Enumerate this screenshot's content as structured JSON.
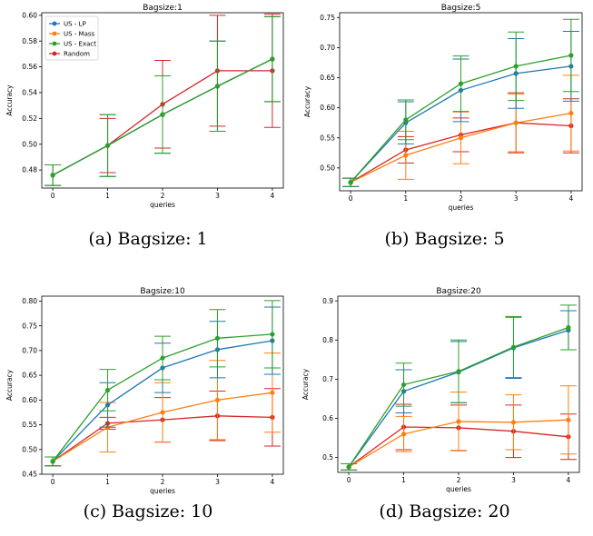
{
  "colors": {
    "US - LP": "#1f77b4",
    "US - Mass": "#ff7f0e",
    "US - Exact": "#2ca02c",
    "Random": "#d62728"
  },
  "chart_data": [
    {
      "type": "line",
      "title": "Bagsize:1",
      "caption": "(a) Bagsize: 1",
      "xlabel": "queries",
      "ylabel": "Accuracy",
      "x": [
        0,
        1,
        2,
        3,
        4
      ],
      "ylim": [
        0.466,
        0.602
      ],
      "yticks": [
        "0.48",
        "0.50",
        "0.52",
        "0.54",
        "0.56",
        "0.58",
        "0.60"
      ],
      "yticks_values": [
        0.48,
        0.5,
        0.52,
        0.54,
        0.56,
        0.58,
        0.6
      ],
      "legend": true,
      "legend_loc": "upper-left",
      "series": [
        {
          "name": "US - LP",
          "values": [
            0.476,
            0.499,
            0.523,
            0.545,
            0.566
          ],
          "err": [
            0.008,
            0.024,
            0.03,
            0.035,
            0.033
          ]
        },
        {
          "name": "US - Mass",
          "values": [
            0.476,
            0.499,
            0.523,
            0.545,
            0.566
          ],
          "err": [
            0.008,
            0.024,
            0.03,
            0.035,
            0.033
          ]
        },
        {
          "name": "US - Exact",
          "values": [
            0.476,
            0.499,
            0.523,
            0.545,
            0.566
          ],
          "err": [
            0.008,
            0.024,
            0.03,
            0.035,
            0.033
          ]
        },
        {
          "name": "Random",
          "values": [
            0.476,
            0.499,
            0.531,
            0.557,
            0.557
          ],
          "err": [
            0.008,
            0.021,
            0.034,
            0.043,
            0.044
          ]
        }
      ]
    },
    {
      "type": "line",
      "title": "Bagsize:5",
      "caption": "(b) Bagsize: 5",
      "xlabel": "queries",
      "ylabel": "Accuracy",
      "x": [
        0,
        1,
        2,
        3,
        4
      ],
      "ylim": [
        0.462,
        0.758
      ],
      "yticks": [
        "0.50",
        "0.55",
        "0.60",
        "0.65",
        "0.70",
        "0.75"
      ],
      "yticks_values": [
        0.5,
        0.55,
        0.6,
        0.65,
        0.7,
        0.75
      ],
      "legend": false,
      "series": [
        {
          "name": "US - LP",
          "values": [
            0.476,
            0.575,
            0.629,
            0.657,
            0.669
          ],
          "err": [
            0.007,
            0.035,
            0.052,
            0.058,
            0.058
          ]
        },
        {
          "name": "US - Mass",
          "values": [
            0.476,
            0.521,
            0.55,
            0.575,
            0.591
          ],
          "err": [
            0.007,
            0.04,
            0.043,
            0.048,
            0.063
          ]
        },
        {
          "name": "US - Exact",
          "values": [
            0.476,
            0.58,
            0.64,
            0.669,
            0.687
          ],
          "err": [
            0.007,
            0.033,
            0.046,
            0.057,
            0.06
          ]
        },
        {
          "name": "Random",
          "values": [
            0.476,
            0.53,
            0.555,
            0.575,
            0.57
          ],
          "err": [
            0.007,
            0.022,
            0.028,
            0.05,
            0.045
          ]
        }
      ]
    },
    {
      "type": "line",
      "title": "Bagsize:10",
      "caption": "(c) Bagsize: 10",
      "xlabel": "queries",
      "ylabel": "Accuracy",
      "x": [
        0,
        1,
        2,
        3,
        4
      ],
      "ylim": [
        0.45,
        0.81
      ],
      "yticks": [
        "0.45",
        "0.50",
        "0.55",
        "0.60",
        "0.65",
        "0.70",
        "0.75",
        "0.80"
      ],
      "yticks_values": [
        0.45,
        0.5,
        0.55,
        0.6,
        0.65,
        0.7,
        0.75,
        0.8
      ],
      "legend": false,
      "series": [
        {
          "name": "US - LP",
          "values": [
            0.476,
            0.59,
            0.665,
            0.702,
            0.72
          ],
          "err": [
            0.009,
            0.045,
            0.05,
            0.057,
            0.068
          ]
        },
        {
          "name": "US - Mass",
          "values": [
            0.476,
            0.545,
            0.575,
            0.6,
            0.615
          ],
          "err": [
            0.009,
            0.05,
            0.06,
            0.08,
            0.08
          ]
        },
        {
          "name": "US - Exact",
          "values": [
            0.476,
            0.62,
            0.685,
            0.725,
            0.733
          ],
          "err": [
            0.009,
            0.042,
            0.044,
            0.058,
            0.068
          ]
        },
        {
          "name": "Random",
          "values": [
            0.476,
            0.553,
            0.56,
            0.568,
            0.565
          ],
          "err": [
            0.009,
            0.012,
            0.045,
            0.05,
            0.058
          ]
        }
      ]
    },
    {
      "type": "line",
      "title": "Bagsize:20",
      "caption": "(d) Bagsize: 20",
      "xlabel": "queries",
      "ylabel": "Accuracy",
      "x": [
        0,
        1,
        2,
        3,
        4
      ],
      "ylim": [
        0.462,
        0.912
      ],
      "yticks": [
        "0.5",
        "0.6",
        "0.7",
        "0.8",
        "0.9"
      ],
      "yticks_values": [
        0.5,
        0.6,
        0.7,
        0.8,
        0.9
      ],
      "legend": false,
      "series": [
        {
          "name": "US - LP",
          "values": [
            0.476,
            0.669,
            0.718,
            0.78,
            0.825
          ],
          "err": [
            0.008,
            0.055,
            0.078,
            0.078,
            0.05
          ]
        },
        {
          "name": "US - Mass",
          "values": [
            0.476,
            0.56,
            0.592,
            0.59,
            0.596
          ],
          "err": [
            0.008,
            0.045,
            0.075,
            0.07,
            0.087
          ]
        },
        {
          "name": "US - Exact",
          "values": [
            0.476,
            0.686,
            0.72,
            0.782,
            0.832
          ],
          "err": [
            0.008,
            0.055,
            0.08,
            0.078,
            0.057
          ]
        },
        {
          "name": "Random",
          "values": [
            0.476,
            0.578,
            0.576,
            0.567,
            0.553
          ],
          "err": [
            0.008,
            0.058,
            0.058,
            0.067,
            0.058
          ]
        }
      ]
    }
  ]
}
